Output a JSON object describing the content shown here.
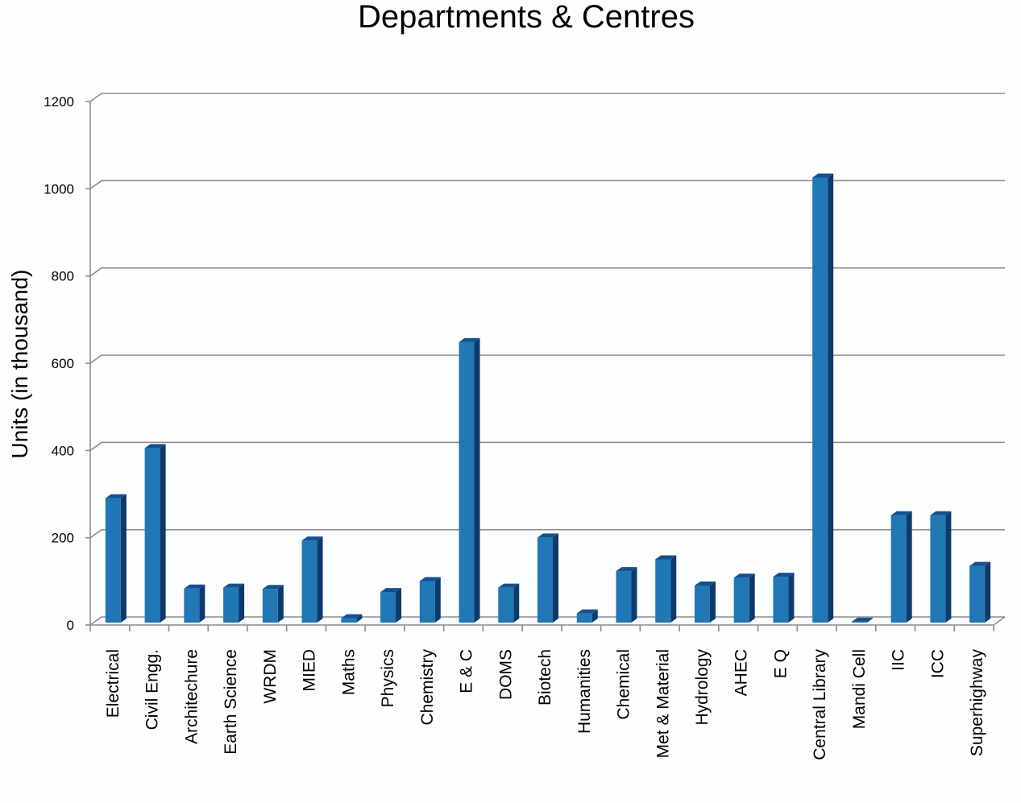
{
  "chart_data": {
    "type": "bar",
    "title": "Departments & Centres",
    "xlabel": "",
    "ylabel": "Units (in thousand)",
    "ylim": [
      0,
      1200
    ],
    "yticks": [
      "0",
      "200",
      "400",
      "600",
      "800",
      "1000",
      "1200"
    ],
    "grid": true,
    "legend": "none",
    "bar_color": "#1f77b4",
    "categories": [
      "Electrical",
      "Civil Engg.",
      "Architechure",
      "Earth Science",
      "WRDM",
      "MIED",
      "Maths",
      "Physics",
      "Chemistry",
      "E & C",
      "DOMS",
      "Biotech",
      "Humanities",
      "Chemical",
      "Met & Material",
      "Hydrology",
      "AHEC",
      "E Q",
      "Central Library",
      "Mandi Cell",
      "IIC",
      "ICC",
      "Superhighway"
    ],
    "values": [
      285,
      400,
      78,
      80,
      77,
      188,
      10,
      70,
      95,
      643,
      80,
      195,
      21,
      118,
      145,
      85,
      103,
      105,
      1020,
      2,
      246,
      246,
      130
    ]
  }
}
